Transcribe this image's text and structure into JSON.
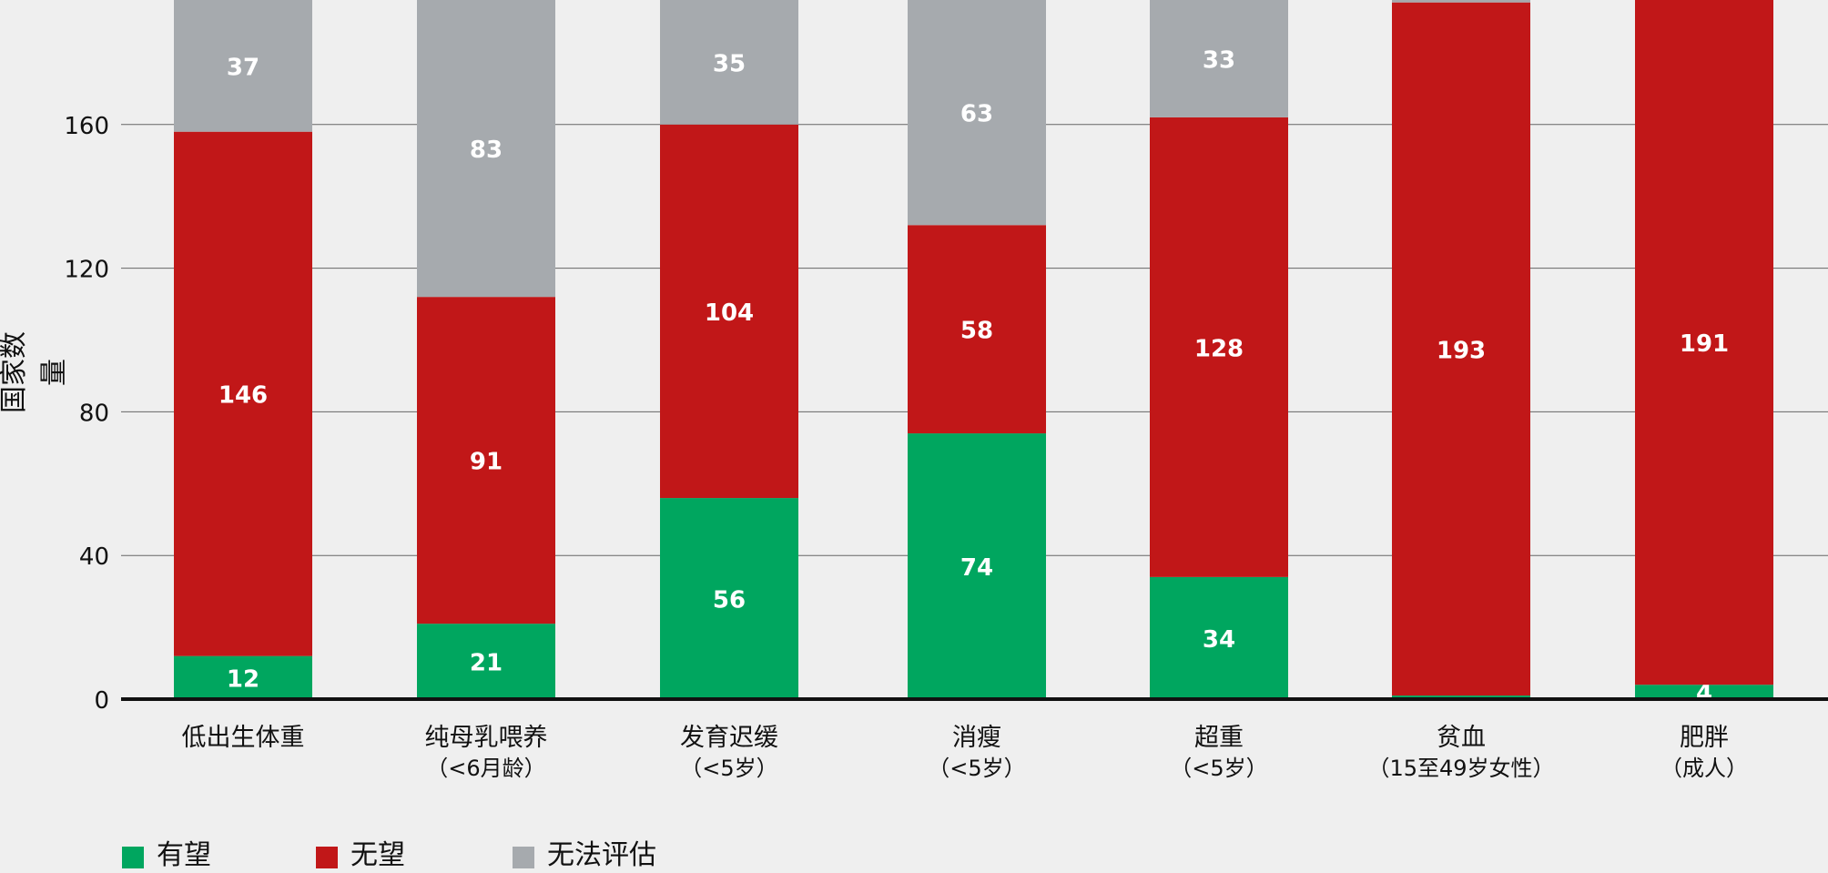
{
  "chart_data": {
    "type": "bar",
    "stacked": true,
    "title": "",
    "xlabel": "",
    "ylabel": "国家数量",
    "ylim": [
      0,
      195
    ],
    "yticks": [
      0,
      40,
      80,
      120,
      160
    ],
    "grid": true,
    "legend_position": "bottom-left",
    "categories": [
      [
        "低出生体重"
      ],
      [
        "纯母乳喂养",
        "（<6月龄）"
      ],
      [
        "发育迟缓",
        "（<5岁）"
      ],
      [
        "消瘦",
        "（<5岁）"
      ],
      [
        "超重",
        "（<5岁）"
      ],
      [
        "贫血",
        "（15至49岁女性）"
      ],
      [
        "肥胖",
        "（成人）"
      ]
    ],
    "series": [
      {
        "name": "有望",
        "color": "#00a65f",
        "values": [
          12,
          21,
          56,
          74,
          34,
          1,
          4
        ],
        "labels": [
          "12",
          "21",
          "56",
          "74",
          "34",
          "",
          "4"
        ]
      },
      {
        "name": "无望",
        "color": "#c11718",
        "values": [
          146,
          91,
          104,
          58,
          128,
          193,
          191
        ],
        "labels": [
          "146",
          "91",
          "104",
          "58",
          "128",
          "193",
          "191"
        ]
      },
      {
        "name": "无法评估",
        "color": "#a6aaae",
        "values": [
          37,
          83,
          35,
          63,
          33,
          1,
          0
        ],
        "labels": [
          "37",
          "83",
          "35",
          "63",
          "33",
          "",
          ""
        ]
      }
    ]
  }
}
